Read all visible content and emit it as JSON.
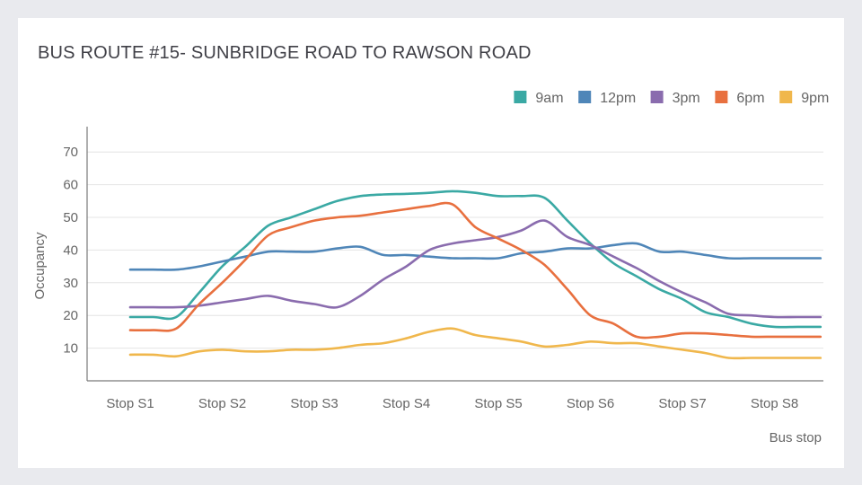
{
  "chart_data": {
    "type": "line",
    "title": "BUS ROUTE #15- SUNBRIDGE ROAD TO RAWSON ROAD",
    "xlabel": "Bus stop",
    "ylabel": "Occupancy",
    "ylim": [
      0,
      75
    ],
    "yticks": [
      10,
      20,
      30,
      40,
      50,
      60,
      70
    ],
    "grid": true,
    "legend_position": "top-right",
    "categories": [
      "Stop S1",
      "Stop S2",
      "Stop S3",
      "Stop S4",
      "Stop S5",
      "Stop S6",
      "Stop S7",
      "Stop S8"
    ],
    "x": [
      0,
      0.25,
      0.5,
      0.75,
      1,
      1.25,
      1.5,
      1.75,
      2,
      2.25,
      2.5,
      2.75,
      3,
      3.25,
      3.5,
      3.75,
      4,
      4.25,
      4.5,
      4.75,
      5,
      5.25,
      5.5,
      5.75,
      6,
      6.25,
      6.5,
      6.75,
      7,
      7.25,
      7.5
    ],
    "series": [
      {
        "name": "9am",
        "color": "#3aa9a4",
        "values": [
          19.5,
          19.5,
          19.5,
          27,
          35,
          41,
          47.5,
          50,
          52.5,
          55,
          56.5,
          57,
          57.2,
          57.5,
          58,
          57.5,
          56.5,
          56.5,
          56,
          49,
          42,
          36,
          32,
          28,
          25,
          21,
          19.5,
          17.5,
          16.5,
          16.5,
          16.5
        ]
      },
      {
        "name": "12pm",
        "color": "#4f86b8",
        "values": [
          34,
          34,
          34,
          35,
          36.5,
          38,
          39.5,
          39.5,
          39.5,
          40.5,
          41,
          38.5,
          38.5,
          38,
          37.5,
          37.5,
          37.5,
          39,
          39.5,
          40.5,
          40.5,
          41.5,
          42,
          39.5,
          39.5,
          38.5,
          37.5,
          37.5,
          37.5,
          37.5,
          37.5
        ]
      },
      {
        "name": "3pm",
        "color": "#8a6cae",
        "values": [
          22.5,
          22.5,
          22.5,
          23,
          24,
          25,
          26,
          24.5,
          23.5,
          22.5,
          26,
          31,
          35,
          40,
          42,
          43,
          44,
          46,
          49,
          44,
          41.5,
          38,
          34.5,
          30.5,
          27,
          24,
          20.5,
          20,
          19.5,
          19.5,
          19.5
        ]
      },
      {
        "name": "6pm",
        "color": "#e8703f",
        "values": [
          15.5,
          15.5,
          16,
          23.5,
          30,
          37,
          44.5,
          47,
          49,
          50,
          50.5,
          51.5,
          52.5,
          53.5,
          54,
          47,
          43.5,
          40,
          35.5,
          28,
          20,
          17.5,
          13.5,
          13.5,
          14.5,
          14.5,
          14,
          13.5,
          13.5,
          13.5,
          13.5
        ]
      },
      {
        "name": "9pm",
        "color": "#f0b74c",
        "values": [
          8,
          8,
          7.5,
          9,
          9.5,
          9,
          9,
          9.5,
          9.5,
          10,
          11,
          11.5,
          13,
          15,
          16,
          14,
          13,
          12,
          10.5,
          11,
          12,
          11.5,
          11.5,
          10.5,
          9.5,
          8.5,
          7,
          7,
          7,
          7,
          7
        ]
      }
    ]
  }
}
